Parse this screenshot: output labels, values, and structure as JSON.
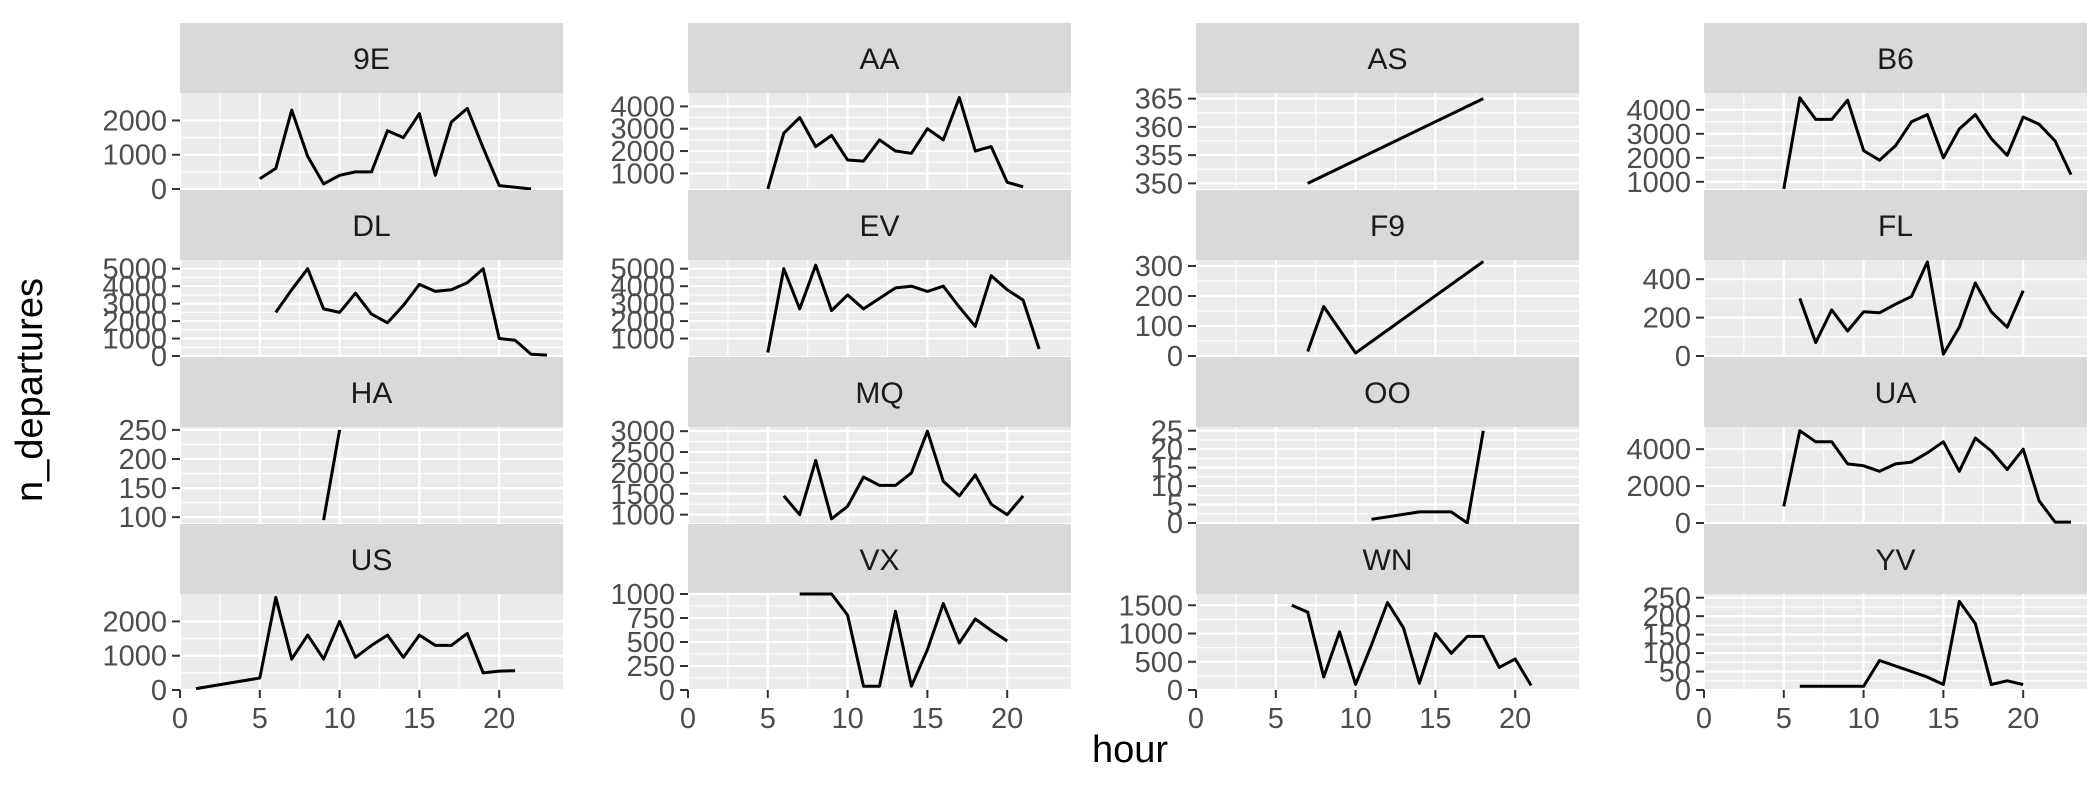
{
  "chart_data": {
    "type": "line",
    "layout": "facet_wrap",
    "ncol": 4,
    "xlabel": "hour",
    "ylabel": "n_departures",
    "x_ticks": [
      0,
      5,
      10,
      15,
      20
    ],
    "x_lim": [
      0,
      24
    ],
    "scales": "free_y",
    "grid": true,
    "colors": {
      "panel_bg": "#ebebeb",
      "grid": "#ffffff",
      "strip_bg": "#d9d9d9",
      "line": "#000000"
    },
    "panels": [
      {
        "name": "9E",
        "ylim": [
          0,
          2800
        ],
        "y_ticks": [
          0,
          1000,
          2000
        ],
        "x": [
          5,
          6,
          7,
          8,
          9,
          10,
          11,
          12,
          13,
          14,
          15,
          16,
          17,
          18,
          19,
          20,
          21,
          22
        ],
        "y": [
          300,
          600,
          2300,
          950,
          150,
          400,
          500,
          500,
          1700,
          1500,
          2200,
          400,
          1950,
          2350,
          1200,
          100,
          50,
          0
        ]
      },
      {
        "name": "AA",
        "ylim": [
          300,
          4600
        ],
        "y_ticks": [
          1000,
          2000,
          3000,
          4000
        ],
        "x": [
          5,
          6,
          7,
          8,
          9,
          10,
          11,
          12,
          13,
          14,
          15,
          16,
          17,
          18,
          19,
          20,
          21
        ],
        "y": [
          300,
          2800,
          3500,
          2200,
          2700,
          1600,
          1550,
          2500,
          2000,
          1900,
          3000,
          2500,
          4400,
          2000,
          2200,
          600,
          400
        ]
      },
      {
        "name": "AS",
        "ylim": [
          349,
          366
        ],
        "y_ticks": [
          350,
          355,
          360,
          365
        ],
        "x": [
          7,
          18
        ],
        "y": [
          350,
          365
        ]
      },
      {
        "name": "B6",
        "ylim": [
          700,
          4700
        ],
        "y_ticks": [
          1000,
          2000,
          3000,
          4000
        ],
        "x": [
          5,
          6,
          7,
          8,
          9,
          10,
          11,
          12,
          13,
          14,
          15,
          16,
          17,
          18,
          19,
          20,
          21,
          22,
          23
        ],
        "y": [
          700,
          4500,
          3600,
          3600,
          4400,
          2300,
          1900,
          2500,
          3500,
          3800,
          2000,
          3200,
          3800,
          2800,
          2100,
          3700,
          3400,
          2700,
          1300
        ]
      },
      {
        "name": "DL",
        "ylim": [
          0,
          5500
        ],
        "y_ticks": [
          0,
          1000,
          2000,
          3000,
          4000,
          5000
        ],
        "x": [
          6,
          7,
          8,
          9,
          10,
          11,
          12,
          13,
          14,
          15,
          16,
          17,
          18,
          19,
          20,
          21,
          22,
          23
        ],
        "y": [
          2500,
          3800,
          5000,
          2700,
          2500,
          3600,
          2400,
          1900,
          2900,
          4100,
          3700,
          3800,
          4200,
          5000,
          1000,
          900,
          100,
          50
        ]
      },
      {
        "name": "EV",
        "ylim": [
          0,
          5500
        ],
        "y_ticks": [
          1000,
          2000,
          3000,
          4000,
          5000
        ],
        "x": [
          5,
          6,
          7,
          8,
          9,
          10,
          11,
          12,
          13,
          14,
          15,
          16,
          17,
          18,
          19,
          20,
          21,
          22
        ],
        "y": [
          200,
          5000,
          2700,
          5200,
          2600,
          3500,
          2700,
          3300,
          3900,
          4000,
          3700,
          4000,
          2800,
          1700,
          4600,
          3800,
          3200,
          400
        ]
      },
      {
        "name": "F9",
        "ylim": [
          0,
          320
        ],
        "y_ticks": [
          0,
          100,
          200,
          300
        ],
        "x": [
          7,
          8,
          10,
          18
        ],
        "y": [
          15,
          165,
          10,
          315
        ]
      },
      {
        "name": "FL",
        "ylim": [
          0,
          500
        ],
        "y_ticks": [
          0,
          200,
          400
        ],
        "x": [
          6,
          7,
          8,
          9,
          10,
          11,
          12,
          13,
          14,
          15,
          16,
          17,
          18,
          19,
          20
        ],
        "y": [
          300,
          70,
          240,
          130,
          230,
          225,
          270,
          310,
          490,
          10,
          150,
          380,
          230,
          150,
          340
        ]
      },
      {
        "name": "HA",
        "ylim": [
          90,
          255
        ],
        "y_ticks": [
          100,
          150,
          200,
          250
        ],
        "x": [
          9,
          10
        ],
        "y": [
          95,
          250
        ]
      },
      {
        "name": "MQ",
        "ylim": [
          800,
          3100
        ],
        "y_ticks": [
          1000,
          1500,
          2000,
          2500,
          3000
        ],
        "x": [
          6,
          7,
          8,
          9,
          10,
          11,
          12,
          13,
          14,
          15,
          16,
          17,
          18,
          19,
          20,
          21
        ],
        "y": [
          1450,
          1000,
          2300,
          900,
          1200,
          1900,
          1700,
          1700,
          2000,
          3000,
          1800,
          1450,
          1950,
          1250,
          1000,
          1450
        ]
      },
      {
        "name": "OO",
        "ylim": [
          0,
          26
        ],
        "y_ticks": [
          0,
          5,
          10,
          15,
          20,
          25
        ],
        "x": [
          11,
          14,
          16,
          17,
          18
        ],
        "y": [
          1,
          3,
          3,
          0,
          25
        ]
      },
      {
        "name": "UA",
        "ylim": [
          0,
          5200
        ],
        "y_ticks": [
          0,
          2000,
          4000
        ],
        "x": [
          5,
          6,
          7,
          8,
          9,
          10,
          11,
          12,
          13,
          14,
          15,
          16,
          17,
          18,
          19,
          20,
          21,
          22,
          23
        ],
        "y": [
          900,
          5000,
          4400,
          4400,
          3200,
          3100,
          2800,
          3200,
          3300,
          3800,
          4400,
          2800,
          4600,
          3900,
          2900,
          4000,
          1200,
          50,
          50
        ]
      },
      {
        "name": "US",
        "ylim": [
          0,
          2800
        ],
        "y_ticks": [
          0,
          1000,
          2000
        ],
        "x": [
          1,
          5,
          6,
          7,
          8,
          9,
          10,
          11,
          12,
          13,
          14,
          15,
          16,
          17,
          18,
          19,
          20,
          21
        ],
        "y": [
          40,
          350,
          2700,
          900,
          1600,
          900,
          2000,
          950,
          1300,
          1600,
          950,
          1600,
          1300,
          1300,
          1650,
          500,
          550,
          560
        ]
      },
      {
        "name": "VX",
        "ylim": [
          0,
          1000
        ],
        "y_ticks": [
          0,
          250,
          500,
          750,
          1000
        ],
        "x": [
          7,
          8,
          9,
          10,
          11,
          12,
          13,
          14,
          15,
          16,
          17,
          18,
          19,
          20
        ],
        "y": [
          1000,
          1000,
          1000,
          780,
          40,
          40,
          820,
          40,
          420,
          900,
          490,
          740,
          620,
          510
        ]
      },
      {
        "name": "WN",
        "ylim": [
          0,
          1700
        ],
        "y_ticks": [
          0,
          500,
          1000,
          1500
        ],
        "x": [
          6,
          7,
          8,
          9,
          10,
          11,
          12,
          13,
          14,
          15,
          16,
          17,
          18,
          19,
          20,
          21
        ],
        "y": [
          1500,
          1380,
          230,
          1030,
          100,
          800,
          1550,
          1100,
          120,
          1000,
          650,
          950,
          950,
          400,
          550,
          80
        ]
      },
      {
        "name": "YV",
        "ylim": [
          0,
          260
        ],
        "y_ticks": [
          0,
          50,
          100,
          150,
          200,
          250
        ],
        "x": [
          6,
          10,
          11,
          12,
          13,
          14,
          15,
          16,
          17,
          18,
          19,
          20
        ],
        "y": [
          10,
          10,
          80,
          65,
          50,
          35,
          15,
          240,
          180,
          15,
          25,
          15
        ]
      }
    ]
  }
}
